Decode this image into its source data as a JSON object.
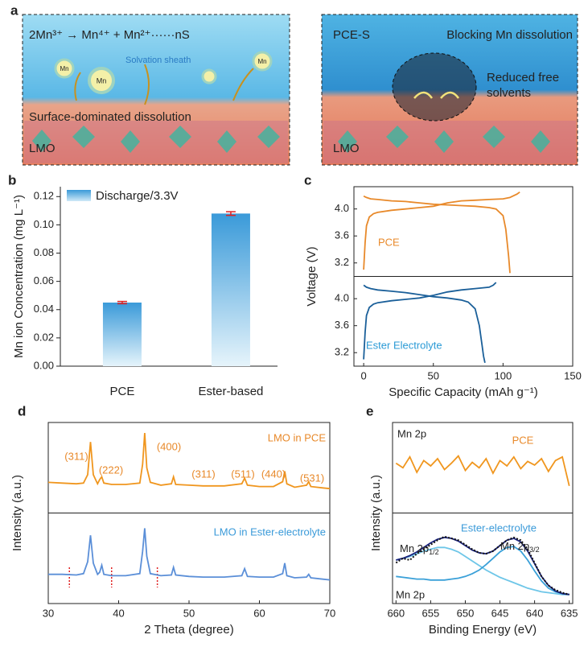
{
  "figure": {
    "panel_labels": [
      "a",
      "b",
      "c",
      "d",
      "e"
    ]
  },
  "illustration": {
    "left": {
      "equation": "2Mn³⁺ → Mn⁴⁺ + Mn²⁺······nS",
      "ion": "Mn",
      "sheath": "Solvation sheath",
      "caption": "Surface-dominated dissolution",
      "electrode": "LMO"
    },
    "right": {
      "tag": "PCE-S",
      "caption": "Blocking Mn dissolution",
      "note": [
        "Reduced free",
        "solvents"
      ],
      "electrode": "LMO"
    }
  },
  "chart_data": [
    {
      "type": "bar",
      "ylabel": "Mn ion Concentration (mg L⁻¹)",
      "categories": [
        "PCE",
        "Ester-based"
      ],
      "series": [
        {
          "name": "Discharge/3.3V",
          "color": "#3a9ad9",
          "values": [
            0.045,
            0.108
          ],
          "errors": [
            0.0008,
            0.0013
          ]
        }
      ],
      "error_color": "#e02020",
      "legend": "top-left",
      "ylim": [
        0,
        0.127
      ],
      "yticks": [
        {
          "value": 0,
          "label": "0.00"
        },
        {
          "value": 0.02,
          "label": "0.02"
        },
        {
          "value": 0.04,
          "label": "0.04"
        },
        {
          "value": 0.06,
          "label": "0.06"
        },
        {
          "value": 0.08,
          "label": "0.08"
        },
        {
          "value": 0.1,
          "label": "0.10"
        },
        {
          "value": 0.12,
          "label": "0.12"
        }
      ]
    },
    {
      "type": "line",
      "xlabel": "Specific Capacity (mAh g⁻¹)",
      "ylabel": "Voltage (V)",
      "xlim": [
        -7,
        150
      ],
      "xticks": [
        0,
        50,
        100,
        150
      ],
      "subplots": [
        {
          "label": "PCE",
          "label_color": "#e8892a",
          "ylim": [
            3.0,
            4.33
          ],
          "yticks": [
            3.2,
            3.6,
            {
              "value": 4.0,
              "label": "4.0"
            }
          ],
          "series": [
            {
              "color": "#e8892a",
              "x": [
                0,
                2,
                5,
                10,
                20,
                30,
                40,
                50,
                60,
                70,
                80,
                90,
                95,
                100,
                102,
                104,
                105
              ],
              "values": [
                4.19,
                4.17,
                4.15,
                4.14,
                4.12,
                4.11,
                4.09,
                4.07,
                4.06,
                4.05,
                4.04,
                4.02,
                4.0,
                3.9,
                3.7,
                3.3,
                3.05
              ]
            },
            {
              "color": "#e8892a",
              "x": [
                0,
                1,
                2,
                4,
                7,
                10,
                20,
                30,
                40,
                50,
                60,
                70,
                80,
                90,
                100,
                105,
                110,
                112
              ],
              "values": [
                3.1,
                3.5,
                3.75,
                3.88,
                3.93,
                3.95,
                3.98,
                4.0,
                4.02,
                4.04,
                4.09,
                4.12,
                4.13,
                4.14,
                4.15,
                4.17,
                4.22,
                4.25
              ]
            }
          ]
        },
        {
          "label": "Ester Electrolyte",
          "label_color": "#2a9ad6",
          "ylim": [
            3.0,
            4.33
          ],
          "yticks": [
            3.2,
            3.6,
            {
              "value": 4.0,
              "label": "4.0"
            }
          ],
          "series": [
            {
              "color": "#1a5f99",
              "x": [
                0,
                2,
                5,
                10,
                20,
                30,
                40,
                50,
                60,
                70,
                75,
                80,
                83,
                85,
                86,
                87
              ],
              "values": [
                4.2,
                4.17,
                4.15,
                4.13,
                4.11,
                4.09,
                4.06,
                4.03,
                4.01,
                3.98,
                3.95,
                3.85,
                3.6,
                3.3,
                3.15,
                3.05
              ]
            },
            {
              "color": "#1a5f99",
              "x": [
                0,
                1,
                2,
                4,
                7,
                10,
                20,
                30,
                40,
                50,
                60,
                70,
                80,
                90,
                93,
                95
              ],
              "values": [
                3.1,
                3.5,
                3.75,
                3.87,
                3.92,
                3.94,
                3.97,
                3.99,
                4.01,
                4.05,
                4.1,
                4.13,
                4.15,
                4.17,
                4.2,
                4.24
              ]
            }
          ]
        }
      ]
    },
    {
      "type": "line",
      "xlabel": "2 Theta (degree)",
      "ylabel": "Intensity (a.u.)",
      "xlim": [
        30,
        70
      ],
      "xticks": [
        30,
        40,
        50,
        60,
        70
      ],
      "x": [
        30,
        32,
        34,
        35,
        35.6,
        36,
        36.4,
        37,
        37.3,
        37.6,
        37.9,
        39,
        41,
        43,
        43.4,
        43.7,
        44,
        44.5,
        46,
        47.5,
        47.8,
        48.1,
        50,
        52,
        55,
        57.5,
        57.9,
        58.3,
        60,
        62,
        63.3,
        63.6,
        63.9,
        65,
        66.7,
        67,
        67.3,
        69,
        70
      ],
      "subplots": [
        {
          "label": "LMO in PCE",
          "label_color": "#e8892a",
          "ylim": [
            -0.3,
            1.0
          ],
          "peak_labels": [
            "(311)",
            "(222)",
            "(400)",
            "(311)",
            "(511)",
            "(440)",
            "(531)"
          ],
          "peak_label_color": "#e8892a",
          "series": [
            {
              "color": "#f0961e",
              "values": [
                0.14,
                0.13,
                0.12,
                0.13,
                0.25,
                0.72,
                0.25,
                0.12,
                0.18,
                0.22,
                0.13,
                0.11,
                0.11,
                0.13,
                0.4,
                0.85,
                0.35,
                0.14,
                0.1,
                0.12,
                0.22,
                0.11,
                0.1,
                0.09,
                0.09,
                0.12,
                0.2,
                0.1,
                0.08,
                0.08,
                0.15,
                0.3,
                0.12,
                0.07,
                0.1,
                0.15,
                0.08,
                0.06,
                0.05
              ]
            }
          ]
        },
        {
          "label": "LMO in Ester-electrolyte",
          "label_color": "#3a9ad9",
          "ylim": [
            -0.3,
            1.0
          ],
          "reference_lines": [
            33,
            39,
            45.5
          ],
          "reference_color": "#e02020",
          "series": [
            {
              "color": "#5b8fd8",
              "values": [
                0.12,
                0.12,
                0.11,
                0.13,
                0.3,
                0.68,
                0.28,
                0.12,
                0.15,
                0.25,
                0.12,
                0.1,
                0.1,
                0.13,
                0.45,
                0.78,
                0.38,
                0.13,
                0.1,
                0.11,
                0.22,
                0.11,
                0.09,
                0.08,
                0.08,
                0.1,
                0.2,
                0.09,
                0.08,
                0.08,
                0.13,
                0.28,
                0.1,
                0.07,
                0.08,
                0.12,
                0.07,
                0.05,
                0.04
              ]
            }
          ]
        }
      ]
    },
    {
      "type": "line",
      "xlabel": "Binding Energy (eV)",
      "ylabel": "Intensity (a.u.)",
      "xlim": [
        660.5,
        634.5
      ],
      "xticks": [
        660,
        655,
        650,
        645,
        640,
        635
      ],
      "x": [
        660,
        659,
        658,
        657,
        656,
        655,
        654,
        653,
        652,
        651,
        650,
        649,
        648,
        647,
        646,
        645,
        644,
        643,
        642,
        641,
        640,
        639,
        638,
        637,
        636,
        635
      ],
      "subplots": [
        {
          "label": "Mn 2p",
          "tag": "PCE",
          "tag_color": "#e8892a",
          "ylim": [
            0,
            1
          ],
          "series": [
            {
              "color": "#f0961e",
              "values": [
                0.55,
                0.5,
                0.62,
                0.45,
                0.58,
                0.52,
                0.6,
                0.48,
                0.55,
                0.63,
                0.47,
                0.56,
                0.5,
                0.6,
                0.44,
                0.58,
                0.52,
                0.62,
                0.49,
                0.57,
                0.53,
                0.6,
                0.46,
                0.58,
                0.62,
                0.3
              ]
            }
          ]
        },
        {
          "label": "Mn 2p",
          "tag": "Ester-electrolyte",
          "tag_color": "#3a9ad9",
          "ylim": [
            0,
            1
          ],
          "peak_labels": [
            {
              "text": "Mn 2p",
              "sub": "1/2"
            },
            {
              "text": "Mn 2p",
              "sub": "3/2"
            }
          ],
          "series": [
            {
              "color": "#6ec6e8",
              "values": [
                0.48,
                0.5,
                0.52,
                0.55,
                0.58,
                0.6,
                0.62,
                0.62,
                0.6,
                0.57,
                0.52,
                0.47,
                0.42,
                0.37,
                0.33,
                0.29,
                0.26,
                0.23,
                0.2,
                0.17,
                0.15,
                0.13,
                0.12,
                0.11,
                0.1,
                0.1
              ]
            },
            {
              "color": "#3aa0d8",
              "values": [
                0.3,
                0.29,
                0.28,
                0.27,
                0.27,
                0.26,
                0.26,
                0.26,
                0.27,
                0.28,
                0.3,
                0.33,
                0.37,
                0.43,
                0.5,
                0.57,
                0.62,
                0.63,
                0.58,
                0.48,
                0.36,
                0.25,
                0.17,
                0.13,
                0.11,
                0.1
              ]
            },
            {
              "color": "#1a237e",
              "values": [
                0.48,
                0.5,
                0.53,
                0.57,
                0.62,
                0.67,
                0.71,
                0.73,
                0.72,
                0.69,
                0.64,
                0.59,
                0.56,
                0.55,
                0.58,
                0.64,
                0.7,
                0.72,
                0.68,
                0.58,
                0.44,
                0.3,
                0.2,
                0.14,
                0.11,
                0.1
              ]
            },
            {
              "color": "#111111",
              "style": "dotted",
              "values": [
                0.45,
                0.5,
                0.48,
                0.55,
                0.6,
                0.65,
                0.7,
                0.74,
                0.72,
                0.7,
                0.65,
                0.6,
                0.56,
                0.55,
                0.58,
                0.64,
                0.7,
                0.73,
                0.7,
                0.6,
                0.45,
                0.3,
                0.2,
                0.15,
                0.12,
                0.1
              ]
            }
          ]
        }
      ]
    }
  ]
}
